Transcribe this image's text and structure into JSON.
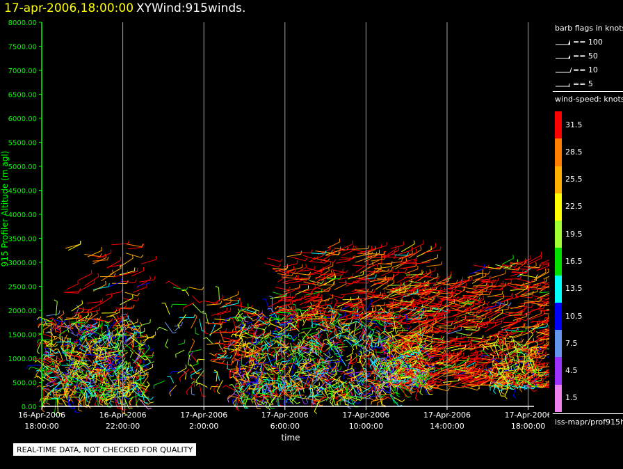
{
  "header": {
    "date_title": "17-apr-2006,18:00:00",
    "plot_title": "XYWind:915winds."
  },
  "chart_data": {
    "type": "scatter",
    "title": "XYWind:915winds.",
    "xlabel": "time",
    "ylabel": "915 Profiler Altitude (m agl)",
    "ylim": [
      0,
      8000
    ],
    "y_ticks": [
      "0.00",
      "500.00",
      "1000.00",
      "1500.00",
      "2000.00",
      "2500.00",
      "3000.00",
      "3500.00",
      "4000.00",
      "4500.00",
      "5000.00",
      "5500.00",
      "6000.00",
      "6500.00",
      "7000.00",
      "7500.00",
      "8000.00"
    ],
    "x_ticks": [
      [
        "16-Apr-2006",
        "18:00:00"
      ],
      [
        "16-Apr-2006",
        "22:00:00"
      ],
      [
        "17-Apr-2006",
        "2:00:00"
      ],
      [
        "17-Apr-2006",
        "6:00:00"
      ],
      [
        "17-Apr-2006",
        "10:00:00"
      ],
      [
        "17-Apr-2006",
        "14:00:00"
      ],
      [
        "17-Apr-2006",
        "18:00:00"
      ]
    ],
    "grid": "vertical",
    "wind_regions": [
      {
        "time_start": "16-Apr-2006 18:00",
        "time_end": "16-Apr-2006 20:00",
        "alt_min": 150,
        "alt_max": 1900,
        "dominant": "mixed"
      },
      {
        "time_start": "16-Apr-2006 19:00",
        "time_end": "16-Apr-2006 23:00",
        "alt_min": 150,
        "alt_max": 3400,
        "dominant": "mixed-red-aloft"
      },
      {
        "time_start": "17-Apr-2006 0:00",
        "time_end": "17-Apr-2006 3:30",
        "alt_min": 400,
        "alt_max": 2500,
        "dominant": "sparse"
      },
      {
        "time_start": "17-Apr-2006 3:00",
        "time_end": "17-Apr-2006 11:30",
        "alt_min": 150,
        "alt_max": 3300,
        "dominant": "mixed-red-aloft"
      },
      {
        "time_start": "17-Apr-2006 11:00",
        "time_end": "17-Apr-2006 16:30",
        "alt_min": 400,
        "alt_max": 3000,
        "dominant": "red"
      }
    ]
  },
  "legend": {
    "barb_title": "barb flags in knots",
    "barb_items": [
      "== 100",
      "== 50",
      "== 10",
      "== 5"
    ],
    "speed_title": "wind-speed: knots",
    "speed_bins": [
      {
        "label": "31.5",
        "color": "#ff0000"
      },
      {
        "label": "28.5",
        "color": "#ff8000"
      },
      {
        "label": "25.5",
        "color": "#ffb000"
      },
      {
        "label": "22.5",
        "color": "#ffff00"
      },
      {
        "label": "19.5",
        "color": "#a0ff30"
      },
      {
        "label": "16.5",
        "color": "#00e000"
      },
      {
        "label": "13.5",
        "color": "#00ffff"
      },
      {
        "label": "10.5",
        "color": "#0000ff"
      },
      {
        "label": "7.5",
        "color": "#6495ed"
      },
      {
        "label": "4.5",
        "color": "#9b30ff"
      },
      {
        "label": "1.5",
        "color": "#ee82ee"
      }
    ],
    "source": "iss-mapr/prof915h"
  },
  "note": "REAL-TIME DATA, NOT CHECKED FOR QUALITY",
  "colors": {
    "axis": "#00ff00",
    "title_date": "#ffff00",
    "background": "#000000"
  }
}
